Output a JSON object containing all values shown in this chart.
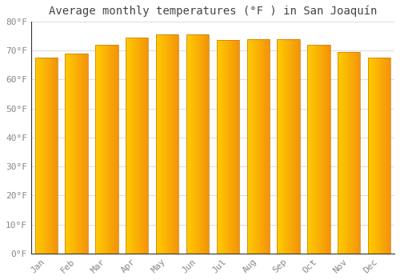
{
  "title": "Average monthly temperatures (°F ) in San Joaquín",
  "months": [
    "Jan",
    "Feb",
    "Mar",
    "Apr",
    "May",
    "Jun",
    "Jul",
    "Aug",
    "Sep",
    "Oct",
    "Nov",
    "Dec"
  ],
  "values": [
    67.5,
    69.0,
    72.0,
    74.5,
    75.5,
    75.5,
    73.5,
    74.0,
    74.0,
    72.0,
    69.5,
    67.5
  ],
  "bar_color_left": "#FFCC00",
  "bar_color_right": "#F4920A",
  "ylim": [
    0,
    80
  ],
  "yticks": [
    0,
    10,
    20,
    30,
    40,
    50,
    60,
    70,
    80
  ],
  "ytick_labels": [
    "0°F",
    "10°F",
    "20°F",
    "30°F",
    "40°F",
    "50°F",
    "60°F",
    "70°F",
    "80°F"
  ],
  "background_color": "#ffffff",
  "grid_color": "#dddddd",
  "bar_gap_color": "#e8e8e8",
  "title_fontsize": 10,
  "tick_fontsize": 8,
  "tick_color": "#888888",
  "spine_color": "#333333"
}
